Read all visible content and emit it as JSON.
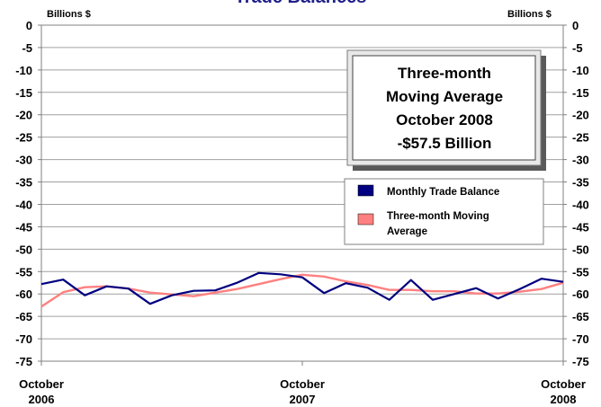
{
  "chart_data": {
    "type": "line",
    "title": "Trade Balances",
    "ylabel_left": "Billions $",
    "ylabel_right": "Billions $",
    "ylim": [
      -75,
      0
    ],
    "yticks": [
      0,
      -5,
      -10,
      -15,
      -20,
      -25,
      -30,
      -35,
      -40,
      -45,
      -50,
      -55,
      -60,
      -65,
      -70,
      -75
    ],
    "grid": true,
    "x_tick_labels": [
      {
        "line1": "October",
        "line2": "2006"
      },
      {
        "line1": "October",
        "line2": "2007"
      },
      {
        "line1": "October",
        "line2": "2008"
      }
    ],
    "x": [
      "Oct 2006",
      "Nov 2006",
      "Dec 2006",
      "Jan 2007",
      "Feb 2007",
      "Mar 2007",
      "Apr 2007",
      "May 2007",
      "Jun 2007",
      "Jul 2007",
      "Aug 2007",
      "Sep 2007",
      "Oct 2007",
      "Nov 2007",
      "Dec 2007",
      "Jan 2008",
      "Feb 2008",
      "Mar 2008",
      "Apr 2008",
      "May 2008",
      "Jun 2008",
      "Jul 2008",
      "Aug 2008",
      "Sep 2008",
      "Oct 2008"
    ],
    "series": [
      {
        "name": "Monthly Trade Balance",
        "color": "#000080",
        "values": [
          -57.8,
          -56.8,
          -60.3,
          -58.3,
          -58.8,
          -62.2,
          -60.3,
          -59.3,
          -59.2,
          -57.5,
          -55.3,
          -55.6,
          -56.3,
          -59.8,
          -57.6,
          -58.6,
          -61.3,
          -56.9,
          -61.3,
          -60.0,
          -58.7,
          -61.0,
          -58.9,
          -56.6,
          -57.3
        ]
      },
      {
        "name": "Three-month Moving Average",
        "color": "#ff8080",
        "values": [
          -62.8,
          -59.6,
          -58.5,
          -58.3,
          -58.8,
          -59.7,
          -60.1,
          -60.5,
          -59.7,
          -58.9,
          -57.8,
          -56.7,
          -55.7,
          -56.1,
          -57.2,
          -58.0,
          -59.1,
          -59.1,
          -59.4,
          -59.4,
          -59.9,
          -59.9,
          -59.5,
          -58.9,
          -57.5
        ]
      }
    ],
    "annotation": {
      "lines": [
        "Three-month",
        "Moving Average",
        "October 2008",
        "-$57.5 Billion"
      ]
    },
    "legend_position": "right"
  }
}
